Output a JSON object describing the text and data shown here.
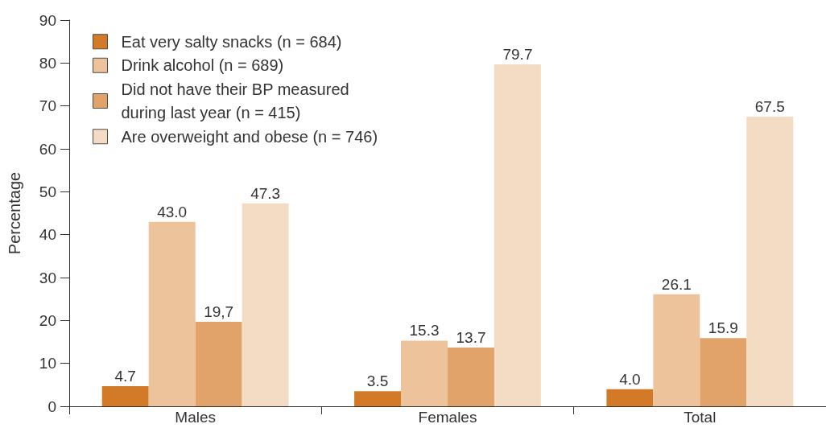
{
  "chart_data": {
    "type": "bar",
    "ylabel": "Percentage",
    "categories": [
      "Males",
      "Females",
      "Total"
    ],
    "series": [
      {
        "name": "Eat very salty snacks (n = 684)",
        "color": "#d27a28",
        "values": [
          4.7,
          3.5,
          4.0
        ],
        "value_labels": [
          "4.7",
          "3.5",
          "4.0"
        ]
      },
      {
        "name": "Drink alcohol (n = 689)",
        "color": "#ecc39b",
        "values": [
          43.0,
          15.3,
          26.1
        ],
        "value_labels": [
          "43.0",
          "15.3",
          "26.1"
        ]
      },
      {
        "name": "Did not have their BP measured during last year (n = 415)",
        "color": "#e2a36a",
        "values": [
          19.7,
          13.7,
          15.9
        ],
        "value_labels": [
          "19,7",
          "13.7",
          "15.9"
        ]
      },
      {
        "name": "Are overweight and obese (n = 746)",
        "color": "#f4dcc4",
        "values": [
          47.3,
          79.7,
          67.5
        ],
        "value_labels": [
          "47.3",
          "79.7",
          "67.5"
        ]
      }
    ],
    "ylim": [
      0,
      90
    ],
    "yticks": [
      0,
      10,
      20,
      30,
      40,
      50,
      60,
      70,
      80,
      90
    ],
    "grid": false,
    "legend": "top left"
  }
}
